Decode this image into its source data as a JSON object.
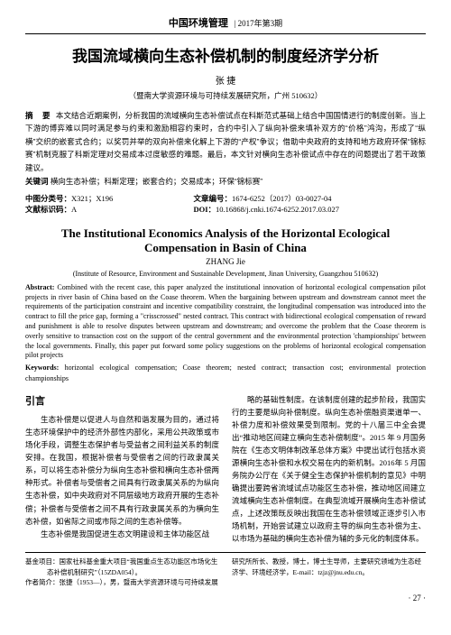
{
  "header": {
    "journal": "中国环境管理",
    "issue": "2017年第3期"
  },
  "cn": {
    "title": "我国流域横向生态补偿机制的制度经济学分析",
    "author": "张  捷",
    "affil": "（暨南大学资源环境与可持续发展研究所，广州 510632）",
    "abstract_label": "摘  要",
    "abstract": "本文结合近期案例，分析我国的流域横向生态补偿试点在科斯范式基础上结合中国国情进行的制度创新。当上下游的博弈难以同时满足参与约束和激励相容约束时，合约中引入了纵向补偿来填补双方的“价格”鸿沟，形成了“纵横”交织的嵌套式合约；以奖罚并举的双向补偿来化解上下游的“产权”争议；借助中央政府的支持和地方政府环保“锦标赛”机制克服了科斯定理对交易成本过度敏感的难题。最后，本文针对横向生态补偿试点中存在的问题提出了若干政策建议。",
    "kw_label": "关键词",
    "keywords": "横向生态补偿；科斯定理；嵌套合约；交易成本；环保“锦标赛”",
    "clc_label": "中图分类号：",
    "clc": "X321；X196",
    "docno_label": "文章编号：",
    "docno": "1674-6252（2017）03-0027-04",
    "doccode_label": "文献标识码：",
    "doccode": "A",
    "doi_label": "DOI：",
    "doi": "10.16868/j.cnki.1674-6252.2017.03.027"
  },
  "en": {
    "title": "The Institutional Economics Analysis of the Horizontal Ecological Compensation in Basin of China",
    "author": "ZHANG Jie",
    "affil": "(Institute of Resource, Environment and Sustainable Development, Jinan University, Guangzhou 510632)",
    "abs_label": "Abstract:",
    "abstract": " Combined with the recent case, this paper analyzed the institutional innovation of horizontal ecological compensation pilot projects in river basin of China based on the Coase theorem. When the bargaining between upstream and downstream cannot meet the requirements of the participation constraint and incentive compatibility constraint, the longitudinal compensation was introduced into the contract to fill the price gap, forming a \"crisscrossed\" nested contract. This contract with bidirectional ecological compensation of reward and punishment is able to resolve disputes between upstream and downstream; and overcome the problem that the Coase theorem is overly sensitive to transaction cost on the support of the central government and the environmental protection 'championships' between the local governments. Finally, this paper put forward some policy suggestions on the problems of horizontal ecological compensation pilot projects",
    "kw_label": "Keywords:",
    "keywords": " horizontal ecological compensation; Coase theorem; nested contract; transaction cost; environmental protection championships"
  },
  "body": {
    "intro_head": "引言",
    "left_p1": "生态补偿是以促进人与自然和谐发展为目的，通过将生态环境保护中的经济外部性内部化，采用公共政策或市场化手段，调整生态保护者与受益者之间利益关系的制度安排。在我国，根据补偿者与受偿者之间的行政隶属关系，可以将生态补偿分为纵向生态补偿和横向生态补偿两种形式。补偿者与受偿者之间具有行政隶属关系的为纵向生态补偿，如中央政府对不同层级地方政府开展的生态补偿；补偿者与受偿者之间不具有行政隶属关系的为横向生态补偿，如省际之间或市际之间的生态补偿等。",
    "left_p2": "生态补偿是我国促进生态文明建设和主体功能区战",
    "right_p1": "略的基础性制度。在该制度创建的起步阶段，我国实行的主要是纵向补偿制度。纵向生态补偿融资渠道单一、补偿力度和补偿效果受到限制。党的十八届三中全会提出“推动地区间建立横向生态补偿制度”。2015 年 9 月国务院在《生态文明体制改革总体方案》中提出试行包括水资源横向生态补偿和水权交易在内的新机制。2016年 5 月国务院办公厅在《关于健全生态保护补偿机制的意见》中明确提出要跨省流域试点功能区生态补偿，推动地区间建立流域横向生态补偿制度。在典型流域开展横向生态补偿试点，上述改策既反映出我国在生态补偿领域正逐步引入市场机制，开始尝试建立以政府主导的纵向生态补偿为主、以市场为基础的横向生态补偿为辅的多元化的制度体系。"
  },
  "footnotes": {
    "fund_label": "基金项目：",
    "fund": "国家社科基金重大项目“我国重点生态功能区市场化生态补偿机制研究”（15ZDA054）。",
    "author_label": "作者简介：",
    "author_info": "张捷（1953—），男，暨南大学资源环境与可持续发展",
    "right_tail": "研究所所长、教授，博士，博士生导师，主要研究领域为生态经济学、环境经济学，E-mail：tzjz@jnu.edu.cn。"
  },
  "page_number": "· 27 ·"
}
